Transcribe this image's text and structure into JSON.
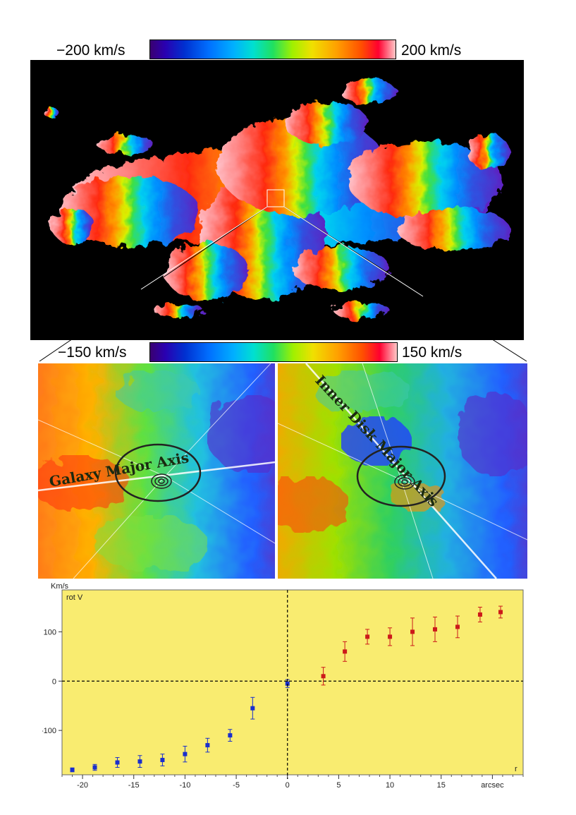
{
  "colorbar_top": {
    "min_label": "−200 km/s",
    "max_label": "200 km/s"
  },
  "colorbar_mid": {
    "min_label": "−150 km/s",
    "max_label": "150 km/s"
  },
  "panel_left": {
    "label": "Galaxy Major Axis"
  },
  "panel_right": {
    "label": "Inner Disk Major Axis"
  },
  "chart_data": {
    "type": "scatter",
    "ylabel": "Km/s",
    "xlabel": "arcsec",
    "inner_ylabel": "rot V",
    "inner_xlabel": "r",
    "xlim": [
      -22,
      23
    ],
    "ylim": [
      -190,
      185
    ],
    "xticks": [
      -20,
      -15,
      -10,
      -5,
      0,
      5,
      10,
      15,
      20
    ],
    "xtick_labels": [
      "-20",
      "-15",
      "-10",
      "-5",
      "0",
      "5",
      "10",
      "15",
      "arcsec"
    ],
    "yticks": [
      100,
      0,
      -100
    ],
    "ytick_labels": [
      "100",
      "0",
      "-100"
    ],
    "grid": false,
    "series": [
      {
        "color": "#cc1a1a",
        "points": [
          {
            "x": 3.5,
            "y": 10,
            "err": 18
          },
          {
            "x": 5.6,
            "y": 60,
            "err": 20
          },
          {
            "x": 7.8,
            "y": 90,
            "err": 15
          },
          {
            "x": 10.0,
            "y": 90,
            "err": 18
          },
          {
            "x": 12.2,
            "y": 100,
            "err": 28
          },
          {
            "x": 14.4,
            "y": 105,
            "err": 25
          },
          {
            "x": 16.6,
            "y": 110,
            "err": 22
          },
          {
            "x": 18.8,
            "y": 135,
            "err": 15
          },
          {
            "x": 20.8,
            "y": 140,
            "err": 12
          }
        ]
      },
      {
        "color": "#1a2fcc",
        "points": [
          {
            "x": -21.0,
            "y": -180,
            "err": 4
          },
          {
            "x": -18.8,
            "y": -175,
            "err": 6
          },
          {
            "x": -16.6,
            "y": -165,
            "err": 10
          },
          {
            "x": -14.4,
            "y": -163,
            "err": 12
          },
          {
            "x": -12.2,
            "y": -160,
            "err": 12
          },
          {
            "x": -10.0,
            "y": -148,
            "err": 16
          },
          {
            "x": -7.8,
            "y": -130,
            "err": 14
          },
          {
            "x": -5.6,
            "y": -110,
            "err": 12
          },
          {
            "x": -3.4,
            "y": -55,
            "err": 22
          },
          {
            "x": 0.0,
            "y": -5,
            "err": 8
          }
        ]
      }
    ]
  },
  "colors": {
    "plot_bg": "#f9ec70",
    "zero_line": "#000000",
    "panel_border": "#ffffff"
  }
}
